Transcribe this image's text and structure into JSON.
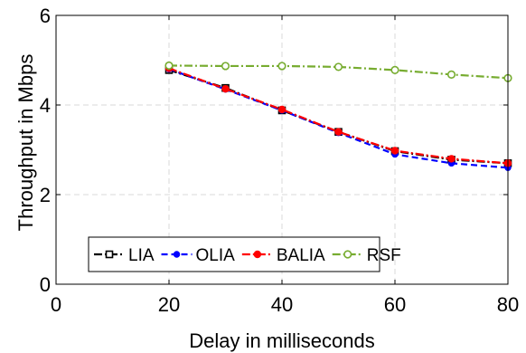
{
  "chart_data": {
    "type": "line",
    "xlabel": "Delay in milliseconds",
    "ylabel": "Throughput in Mbps",
    "xlim": [
      0,
      80
    ],
    "ylim": [
      0,
      6
    ],
    "x_ticks": [
      0,
      20,
      40,
      60,
      80
    ],
    "y_ticks": [
      0,
      2,
      4,
      6
    ],
    "grid": true,
    "legend_position": "bottom-left",
    "x": [
      20,
      30,
      40,
      50,
      60,
      70,
      80
    ],
    "series": [
      {
        "name": "LIA",
        "color": "#000000",
        "marker": "square",
        "dash": "dashdot",
        "values": [
          4.78,
          4.38,
          3.88,
          3.4,
          2.97,
          2.78,
          2.7
        ]
      },
      {
        "name": "OLIA",
        "color": "#0000ff",
        "marker": "dot",
        "dash": "dashed",
        "values": [
          4.8,
          4.35,
          3.88,
          3.38,
          2.9,
          2.7,
          2.6
        ]
      },
      {
        "name": "BALIA",
        "color": "#ff0000",
        "marker": "star",
        "dash": "dashdot",
        "values": [
          4.82,
          4.36,
          3.9,
          3.4,
          2.98,
          2.8,
          2.7
        ]
      },
      {
        "name": "RSF",
        "color": "#77ac30",
        "marker": "circle",
        "dash": "dashdot",
        "values": [
          4.88,
          4.87,
          4.87,
          4.85,
          4.78,
          4.68,
          4.6
        ]
      }
    ]
  }
}
